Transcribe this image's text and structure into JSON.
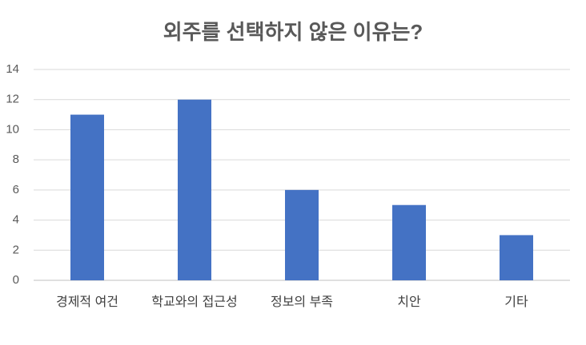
{
  "chart_data": {
    "type": "bar",
    "title": "외주를 선택하지 않은 이유는?",
    "categories": [
      "경제적 여건",
      "학교와의 접근성",
      "정보의 부족",
      "치안",
      "기타"
    ],
    "values": [
      11,
      12,
      6,
      5,
      3
    ],
    "color": "#4472c4",
    "ylim": [
      0,
      14
    ],
    "yticks": [
      0,
      2,
      4,
      6,
      8,
      10,
      12,
      14
    ],
    "grid": true
  }
}
